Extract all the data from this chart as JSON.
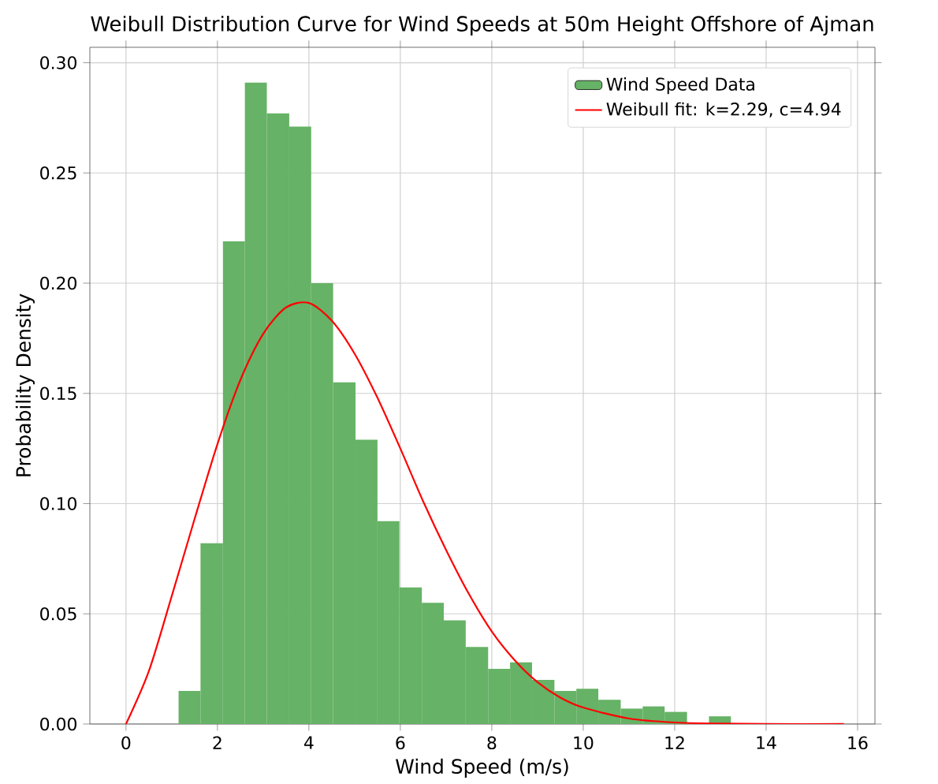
{
  "chart_data": {
    "type": "histogram",
    "title": "Weibull Distribution Curve for Wind Speeds at 50m Height Offshore of Ajman",
    "xlabel": "Wind Speed (m/s)",
    "ylabel": "Probability Density",
    "xlim": [
      -0.79,
      16.38
    ],
    "ylim": [
      0,
      0.307
    ],
    "xticks": [
      0,
      2,
      4,
      6,
      8,
      10,
      12,
      14,
      16
    ],
    "yticks": [
      {
        "value": 0,
        "label": "0.00"
      },
      {
        "value": 0.05,
        "label": "0.05"
      },
      {
        "value": 0.1,
        "label": "0.10"
      },
      {
        "value": 0.15,
        "label": "0.15"
      },
      {
        "value": 0.2,
        "label": "0.20"
      },
      {
        "value": 0.25,
        "label": "0.25"
      },
      {
        "value": 0.3,
        "label": "0.30"
      }
    ],
    "grid": true,
    "legend": "top right",
    "series": [
      {
        "type": "histogram",
        "name": "Wind Speed Data",
        "color": "#66b266",
        "bins": [
          1.15,
          1.63,
          2.12,
          2.6,
          3.08,
          3.57,
          4.05,
          4.53,
          5.02,
          5.5,
          5.98,
          6.47,
          6.95,
          7.43,
          7.92,
          8.4,
          8.88,
          9.37,
          9.85,
          10.33,
          10.82,
          11.3,
          11.78,
          12.27,
          12.75,
          13.23
        ],
        "values": [
          0.015,
          0.082,
          0.219,
          0.291,
          0.277,
          0.271,
          0.2,
          0.155,
          0.129,
          0.092,
          0.062,
          0.055,
          0.047,
          0.035,
          0.025,
          0.028,
          0.02,
          0.015,
          0.016,
          0.011,
          0.007,
          0.008,
          0.0055,
          0,
          0.0035
        ]
      },
      {
        "type": "line",
        "name": "Weibull fit: k=2.29, c=4.94",
        "color": "#ff0000",
        "x": [
          0,
          0.5,
          1,
          1.5,
          2,
          2.5,
          3,
          3.5,
          4,
          4.5,
          5,
          5.5,
          6,
          6.5,
          7,
          7.5,
          8,
          8.5,
          9,
          9.5,
          10,
          11,
          12,
          13,
          14,
          15.7
        ],
        "values": [
          0,
          0.024,
          0.058,
          0.093,
          0.127,
          0.156,
          0.177,
          0.189,
          0.191,
          0.183,
          0.168,
          0.148,
          0.125,
          0.101,
          0.079,
          0.059,
          0.042,
          0.029,
          0.019,
          0.012,
          0.0075,
          0.0025,
          0.0007,
          0.0002,
          0,
          0
        ]
      }
    ]
  }
}
